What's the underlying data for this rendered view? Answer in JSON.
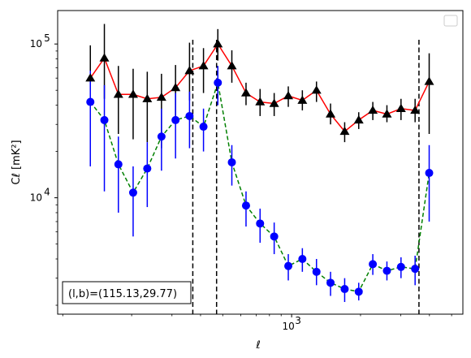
{
  "chart_data": {
    "type": "scatter",
    "xlabel": "ℓ",
    "ylabel": "Cℓ  [mK²]",
    "xscale": "log",
    "yscale": "log",
    "xlim": [
      95,
      5600
    ],
    "ylim": [
      1750,
      165000
    ],
    "x_ticks": [
      {
        "value": 1000,
        "base": "10",
        "exp": "3"
      }
    ],
    "y_ticks": [
      {
        "value": 10000,
        "base": "10",
        "exp": "4"
      },
      {
        "value": 100000,
        "base": "10",
        "exp": "5"
      }
    ],
    "vlines": [
      370,
      470,
      3600
    ],
    "annotation": "(l,b)=(115.13,29.77)",
    "legend": "empty box, top-right",
    "grid": false,
    "series": [
      {
        "style": "triangle markers with error bars, solid line",
        "marker_color": "#000000",
        "line_color": "#ff0000",
        "line_style": "solid",
        "marker": "triangle",
        "points": [
          {
            "x": 132,
            "y": 60000,
            "lo": 29000,
            "hi": 98000
          },
          {
            "x": 152,
            "y": 81000,
            "lo": 44000,
            "hi": 135000
          },
          {
            "x": 175,
            "y": 47000,
            "lo": 26000,
            "hi": 72000
          },
          {
            "x": 203,
            "y": 47000,
            "lo": 24000,
            "hi": 69000
          },
          {
            "x": 234,
            "y": 44000,
            "lo": 23000,
            "hi": 66000
          },
          {
            "x": 270,
            "y": 45000,
            "lo": 21000,
            "hi": 64000
          },
          {
            "x": 311,
            "y": 52000,
            "lo": 32000,
            "hi": 73000
          },
          {
            "x": 358,
            "y": 67000,
            "lo": 43000,
            "hi": 102000
          },
          {
            "x": 412,
            "y": 72000,
            "lo": 48000,
            "hi": 94000
          },
          {
            "x": 476,
            "y": 100000,
            "lo": 78000,
            "hi": 125000
          },
          {
            "x": 548,
            "y": 72000,
            "lo": 56000,
            "hi": 91000
          },
          {
            "x": 632,
            "y": 48000,
            "lo": 40000,
            "hi": 56000
          },
          {
            "x": 728,
            "y": 42000,
            "lo": 34000,
            "hi": 51000
          },
          {
            "x": 839,
            "y": 41000,
            "lo": 34000,
            "hi": 48000
          },
          {
            "x": 967,
            "y": 46000,
            "lo": 39000,
            "hi": 53000
          },
          {
            "x": 1114,
            "y": 43000,
            "lo": 37000,
            "hi": 50000
          },
          {
            "x": 1284,
            "y": 50000,
            "lo": 42000,
            "hi": 57000
          },
          {
            "x": 1479,
            "y": 35000,
            "lo": 30000,
            "hi": 41000
          },
          {
            "x": 1705,
            "y": 27000,
            "lo": 23000,
            "hi": 31000
          },
          {
            "x": 1964,
            "y": 32000,
            "lo": 28000,
            "hi": 36000
          },
          {
            "x": 2263,
            "y": 37000,
            "lo": 32000,
            "hi": 42000
          },
          {
            "x": 2608,
            "y": 35000,
            "lo": 31000,
            "hi": 40000
          },
          {
            "x": 3005,
            "y": 38000,
            "lo": 32000,
            "hi": 44000
          },
          {
            "x": 3463,
            "y": 37000,
            "lo": 31000,
            "hi": 44000
          },
          {
            "x": 3990,
            "y": 57000,
            "lo": 26000,
            "hi": 87000
          }
        ]
      },
      {
        "style": "circle markers with error bars, dashed line",
        "marker_color": "#0000ff",
        "line_color": "#008000",
        "line_style": "dashed",
        "marker": "circle",
        "points": [
          {
            "x": 132,
            "y": 42000,
            "lo": 16000,
            "hi": 67000
          },
          {
            "x": 152,
            "y": 32000,
            "lo": 11000,
            "hi": 54000
          },
          {
            "x": 175,
            "y": 16500,
            "lo": 8000,
            "hi": 25000
          },
          {
            "x": 203,
            "y": 10800,
            "lo": 5600,
            "hi": 16000
          },
          {
            "x": 234,
            "y": 15500,
            "lo": 8700,
            "hi": 23000
          },
          {
            "x": 270,
            "y": 25000,
            "lo": 15000,
            "hi": 38000
          },
          {
            "x": 311,
            "y": 32000,
            "lo": 18000,
            "hi": 48000
          },
          {
            "x": 358,
            "y": 34000,
            "lo": 21000,
            "hi": 49000
          },
          {
            "x": 412,
            "y": 29000,
            "lo": 20000,
            "hi": 38000
          },
          {
            "x": 476,
            "y": 56000,
            "lo": 40000,
            "hi": 72000
          },
          {
            "x": 548,
            "y": 17000,
            "lo": 12000,
            "hi": 22000
          },
          {
            "x": 632,
            "y": 8900,
            "lo": 6500,
            "hi": 11000
          },
          {
            "x": 728,
            "y": 6800,
            "lo": 5100,
            "hi": 8500
          },
          {
            "x": 839,
            "y": 5600,
            "lo": 4300,
            "hi": 6900
          },
          {
            "x": 967,
            "y": 3600,
            "lo": 2900,
            "hi": 4300
          },
          {
            "x": 1114,
            "y": 4000,
            "lo": 3300,
            "hi": 4700
          },
          {
            "x": 1284,
            "y": 3300,
            "lo": 2700,
            "hi": 4000
          },
          {
            "x": 1479,
            "y": 2800,
            "lo": 2300,
            "hi": 3300
          },
          {
            "x": 1705,
            "y": 2550,
            "lo": 2100,
            "hi": 3000
          },
          {
            "x": 1964,
            "y": 2450,
            "lo": 2150,
            "hi": 2800
          },
          {
            "x": 2263,
            "y": 3700,
            "lo": 3150,
            "hi": 4300
          },
          {
            "x": 2608,
            "y": 3350,
            "lo": 2900,
            "hi": 3850
          },
          {
            "x": 3005,
            "y": 3550,
            "lo": 3000,
            "hi": 4100
          },
          {
            "x": 3463,
            "y": 3450,
            "lo": 2700,
            "hi": 4200
          },
          {
            "x": 3990,
            "y": 14500,
            "lo": 7000,
            "hi": 22000
          }
        ]
      }
    ]
  }
}
